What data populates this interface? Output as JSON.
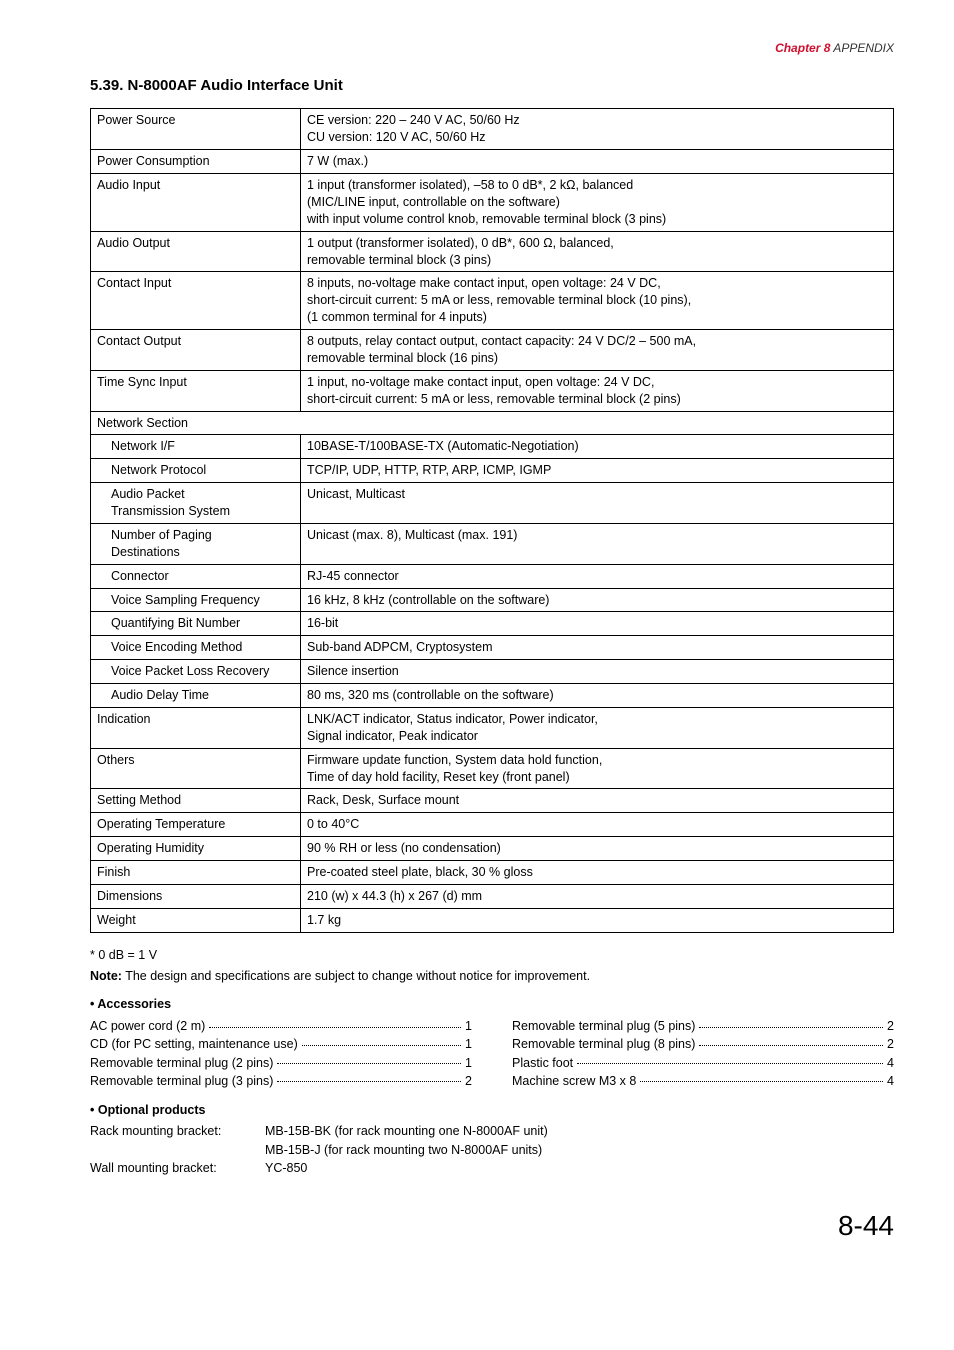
{
  "header": {
    "chapter_label": "Chapter 8",
    "chapter_text": "  APPENDIX"
  },
  "section_title": "5.39. N-8000AF Audio Interface Unit",
  "spec_rows": [
    {
      "label": "Power Source",
      "indent": false,
      "value": "CE version:  220 – 240 V AC, 50/60 Hz\nCU version:  120 V AC, 50/60 Hz"
    },
    {
      "label": "Power Consumption",
      "indent": false,
      "value": "7 W (max.)"
    },
    {
      "label": "Audio Input",
      "indent": false,
      "value": "1 input (transformer isolated), –58 to 0 dB*, 2 kΩ, balanced\n(MIC/LINE input, controllable on the software)\nwith input volume control knob, removable terminal block (3 pins)"
    },
    {
      "label": "Audio Output",
      "indent": false,
      "value": "1 output (transformer isolated), 0 dB*, 600 Ω, balanced,\nremovable terminal block (3 pins)"
    },
    {
      "label": "Contact Input",
      "indent": false,
      "value": "8 inputs, no-voltage make contact input, open voltage: 24 V DC,\nshort-circuit current: 5 mA or less, removable terminal block (10 pins),\n(1 common terminal for 4 inputs)"
    },
    {
      "label": "Contact Output",
      "indent": false,
      "value": "8 outputs, relay contact output, contact capacity: 24 V DC/2 – 500 mA,\nremovable terminal block (16 pins)"
    },
    {
      "label": "Time Sync Input",
      "indent": false,
      "value": "1 input, no-voltage make contact input, open voltage: 24 V DC,\n  short-circuit current: 5 mA or less, removable terminal block (2 pins)"
    },
    {
      "label": "Network Section",
      "indent": false,
      "value": null,
      "fullrow": true
    },
    {
      "label": "Network I/F",
      "indent": true,
      "value": "10BASE-T/100BASE-TX (Automatic-Negotiation)"
    },
    {
      "label": "Network Protocol",
      "indent": true,
      "value": "TCP/IP, UDP, HTTP, RTP, ARP, ICMP, IGMP"
    },
    {
      "label": "Audio Packet\nTransmission System",
      "indent": true,
      "value": "Unicast, Multicast"
    },
    {
      "label": "Number of Paging\nDestinations",
      "indent": true,
      "value": "Unicast (max. 8), Multicast (max. 191)"
    },
    {
      "label": "Connector",
      "indent": true,
      "value": "RJ-45 connector"
    },
    {
      "label": "Voice Sampling Frequency",
      "indent": true,
      "value": "16 kHz, 8 kHz (controllable on the software)"
    },
    {
      "label": "Quantifying Bit Number",
      "indent": true,
      "value": "16-bit"
    },
    {
      "label": "Voice Encoding Method",
      "indent": true,
      "value": "Sub-band ADPCM, Cryptosystem"
    },
    {
      "label": "Voice Packet Loss Recovery",
      "indent": true,
      "value": "Silence insertion"
    },
    {
      "label": "Audio Delay Time",
      "indent": true,
      "value": "80 ms, 320 ms (controllable on the software)"
    },
    {
      "label": "Indication",
      "indent": false,
      "value": "LNK/ACT indicator, Status indicator, Power indicator,\nSignal indicator, Peak indicator"
    },
    {
      "label": "Others",
      "indent": false,
      "value": "Firmware update function, System data hold function,\nTime of day hold facility, Reset key (front panel)"
    },
    {
      "label": "Setting Method",
      "indent": false,
      "value": "Rack, Desk, Surface mount"
    },
    {
      "label": "Operating Temperature",
      "indent": false,
      "value": "0 to 40°C"
    },
    {
      "label": "Operating Humidity",
      "indent": false,
      "value": "90 % RH or less (no condensation)"
    },
    {
      "label": "Finish",
      "indent": false,
      "value": "Pre-coated steel plate, black, 30 % gloss"
    },
    {
      "label": "Dimensions",
      "indent": false,
      "value": "210 (w) x 44.3 (h) x 267 (d) mm"
    },
    {
      "label": "Weight",
      "indent": false,
      "value": "1.7 kg"
    }
  ],
  "footnote": "* 0 dB = 1 V",
  "note_label": "Note:",
  "note_text": " The design and specifications are subject to change without notice for improvement.",
  "accessories_head": "• Accessories",
  "accessories_left": [
    {
      "txt": "AC power cord (2 m)",
      "num": "1"
    },
    {
      "txt": "CD (for PC setting, maintenance use)",
      "num": "1"
    },
    {
      "txt": "Removable terminal plug (2 pins)",
      "num": "1"
    },
    {
      "txt": "Removable terminal plug (3 pins)",
      "num": "2"
    }
  ],
  "accessories_right": [
    {
      "txt": "Removable terminal plug (5 pins)",
      "num": "2"
    },
    {
      "txt": "Removable terminal plug (8 pins)",
      "num": "2"
    },
    {
      "txt": "Plastic foot",
      "num": "4"
    },
    {
      "txt": "Machine screw M3 x 8",
      "num": "4"
    }
  ],
  "optional_head": "• Optional products",
  "optional_rows": [
    {
      "label": "Rack mounting bracket:",
      "value": "MB-15B-BK (for rack mounting one N-8000AF unit)"
    },
    {
      "label": "",
      "value": "MB-15B-J (for rack mounting two N-8000AF units)"
    },
    {
      "label": "Wall mounting bracket:",
      "value": "YC-850"
    }
  ],
  "page_number": "8-44",
  "colors": {
    "accent": "#d01030",
    "text": "#000000",
    "bg": "#ffffff"
  }
}
